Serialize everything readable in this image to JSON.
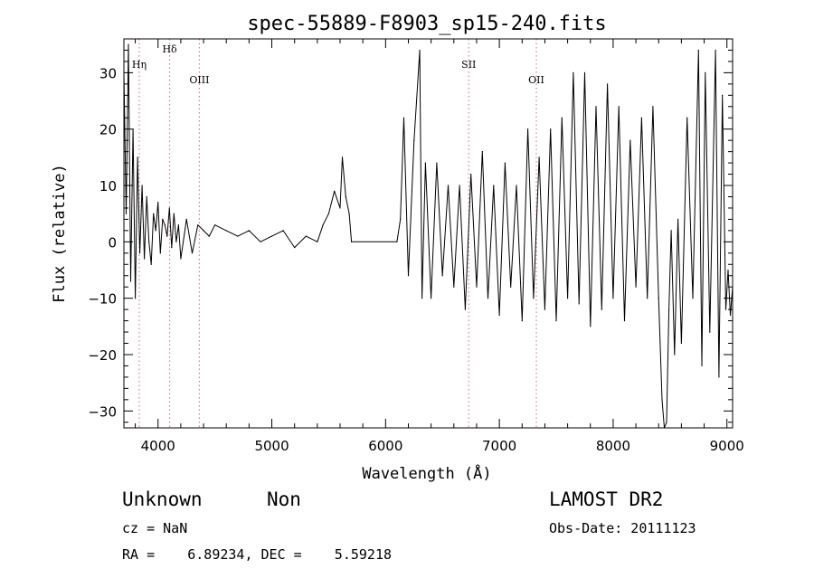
{
  "chart_data": {
    "type": "line",
    "title": "spec-55889-F8903_sp15-240.fits",
    "xlabel": "Wavelength (Å)",
    "ylabel": "Flux (relative)",
    "xlim": [
      3700,
      9050
    ],
    "ylim": [
      -33,
      36
    ],
    "xticks": [
      4000,
      5000,
      6000,
      7000,
      8000,
      9000
    ],
    "yticks": [
      -30,
      -20,
      -10,
      0,
      10,
      20,
      30
    ],
    "grid": false,
    "line_color": "#000000",
    "marker_color": "#d98080",
    "line_markers": [
      {
        "label": "Hη",
        "x": 3835
      },
      {
        "label": "Hδ",
        "x": 4102
      },
      {
        "label": "OIII",
        "x": 4363
      },
      {
        "label": "SII",
        "x": 6731
      },
      {
        "label": "OII",
        "x": 7325
      }
    ],
    "series": [
      {
        "x": [
          3700,
          3720,
          3740,
          3760,
          3780,
          3800,
          3820,
          3840,
          3860,
          3880,
          3900,
          3920,
          3940,
          3960,
          3980,
          4000,
          4020,
          4040,
          4060,
          4080,
          4100,
          4120,
          4140,
          4160,
          4180,
          4200,
          4250,
          4300,
          4350,
          4400,
          4450,
          4500,
          4600,
          4700,
          4800,
          4900,
          5000,
          5100,
          5200,
          5300,
          5400,
          5450,
          5500,
          5550,
          5600,
          5620,
          5650,
          5680,
          5700,
          6100,
          6130,
          6160,
          6200,
          6250,
          6300,
          6320,
          6350,
          6400,
          6450,
          6500,
          6550,
          6600,
          6650,
          6700,
          6750,
          6800,
          6850,
          6900,
          6950,
          7000,
          7050,
          7100,
          7150,
          7200,
          7250,
          7300,
          7350,
          7400,
          7450,
          7500,
          7550,
          7600,
          7650,
          7700,
          7750,
          7800,
          7850,
          7900,
          7950,
          8000,
          8050,
          8100,
          8150,
          8200,
          8250,
          8300,
          8350,
          8400,
          8430,
          8450,
          8470,
          8490,
          8510,
          8540,
          8570,
          8600,
          8650,
          8700,
          8750,
          8780,
          8810,
          8850,
          8900,
          8930,
          8960,
          8990,
          9010,
          9030,
          9050
        ],
        "y": [
          30,
          5,
          35,
          -7,
          20,
          -10,
          15,
          -2,
          10,
          -3,
          8,
          0,
          -4,
          5,
          2,
          7,
          -2,
          4,
          3,
          1,
          6,
          -1,
          5,
          0,
          3,
          -3,
          4,
          -2,
          3,
          2,
          1,
          3,
          2,
          1,
          2,
          0,
          1,
          2,
          -1,
          1,
          0,
          3,
          5,
          9,
          6,
          15,
          8,
          5,
          0,
          0,
          4,
          22,
          -6,
          18,
          34,
          -10,
          14,
          -10,
          14,
          -6,
          10,
          -8,
          10,
          -12,
          12,
          -8,
          16,
          -10,
          10,
          -13,
          14,
          -8,
          10,
          -14,
          20,
          -10,
          15,
          -12,
          20,
          -14,
          22,
          -10,
          30,
          -11,
          30,
          -15,
          24,
          -12,
          28,
          -10,
          24,
          -14,
          18,
          -8,
          22,
          -10,
          24,
          -10,
          -28,
          -33,
          -32,
          -12,
          2,
          -20,
          4,
          -18,
          22,
          -10,
          34,
          -22,
          30,
          -16,
          34,
          -24,
          26,
          -12,
          -5,
          -13,
          -8
        ]
      }
    ]
  },
  "footer": {
    "class_label": "Unknown",
    "subclass_label": "Non",
    "survey": "LAMOST DR2",
    "cz": "cz = NaN",
    "obs_date": "Obs-Date: 20111123",
    "radec": "RA =    6.89234, DEC =    5.59218"
  }
}
